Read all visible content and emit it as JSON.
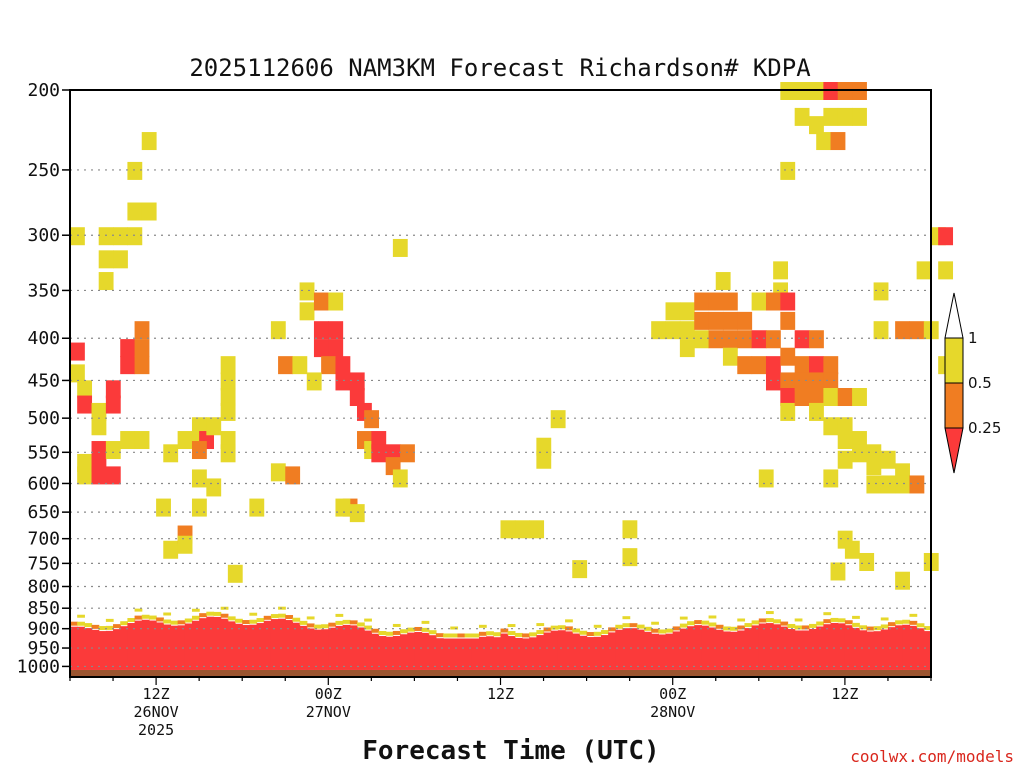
{
  "chart_data": {
    "type": "heatmap",
    "title": "2025112606 NAM3KM Forecast Richardson# KDPA",
    "xlabel": "Forecast Time (UTC)",
    "ylabel": "",
    "credit": "coolwx.com/models",
    "x_range_hours": [
      0,
      60
    ],
    "y_levels_hpa": [
      200,
      250,
      300,
      350,
      400,
      450,
      500,
      550,
      600,
      650,
      700,
      750,
      800,
      850,
      900,
      950,
      1000
    ],
    "ylim_hpa": [
      200,
      1030
    ],
    "x_ticks": [
      {
        "hour": 6,
        "lines": [
          "12Z",
          "26NOV",
          "2025"
        ]
      },
      {
        "hour": 18,
        "lines": [
          "00Z",
          "27NOV"
        ]
      },
      {
        "hour": 30,
        "lines": [
          "12Z"
        ]
      },
      {
        "hour": 42,
        "lines": [
          "00Z",
          "28NOV"
        ]
      },
      {
        "hour": 54,
        "lines": [
          "12Z"
        ]
      }
    ],
    "legend": {
      "thresholds": [
        "1",
        "0.5",
        "0.25"
      ],
      "bins": [
        {
          "label": "0.5 - 1",
          "color": "#e6d82b"
        },
        {
          "label": "0.25 - 0.5",
          "color": "#f07d22"
        },
        {
          "label": "< 0.25",
          "color": "#fb3a3a"
        }
      ]
    },
    "colors": {
      "yellow": "#e6d82b",
      "orange": "#f07d22",
      "red": "#fb3a3a",
      "ground": "#9b5530"
    },
    "ground_hpa": 1010,
    "cells": [
      {
        "x": 0,
        "p": 414,
        "c": "red"
      },
      {
        "x": 0,
        "p": 440,
        "c": "yellow"
      },
      {
        "x": 0.5,
        "p": 460,
        "c": "yellow"
      },
      {
        "x": 0.5,
        "p": 480,
        "c": "red"
      },
      {
        "x": 0.5,
        "p": 565,
        "c": "yellow"
      },
      {
        "x": 0.5,
        "p": 585,
        "c": "yellow"
      },
      {
        "x": 1.5,
        "p": 490,
        "c": "yellow"
      },
      {
        "x": 1.5,
        "p": 510,
        "c": "yellow"
      },
      {
        "x": 1.5,
        "p": 545,
        "c": "red"
      },
      {
        "x": 1.5,
        "p": 565,
        "c": "red"
      },
      {
        "x": 1.5,
        "p": 585,
        "c": "red"
      },
      {
        "x": 2.5,
        "p": 460,
        "c": "red"
      },
      {
        "x": 2.5,
        "p": 480,
        "c": "red"
      },
      {
        "x": 2.5,
        "p": 585,
        "c": "red"
      },
      {
        "x": 2.5,
        "p": 545,
        "c": "yellow"
      },
      {
        "x": 3.5,
        "p": 410,
        "c": "red"
      },
      {
        "x": 3.5,
        "p": 430,
        "c": "red"
      },
      {
        "x": 4.5,
        "p": 390,
        "c": "orange"
      },
      {
        "x": 4.5,
        "p": 410,
        "c": "orange"
      },
      {
        "x": 4.5,
        "p": 430,
        "c": "orange"
      },
      {
        "x": 2,
        "p": 300,
        "c": "yellow"
      },
      {
        "x": 2,
        "p": 320,
        "c": "yellow"
      },
      {
        "x": 2,
        "p": 340,
        "c": "yellow"
      },
      {
        "x": 3,
        "p": 300,
        "c": "yellow"
      },
      {
        "x": 3,
        "p": 320,
        "c": "yellow"
      },
      {
        "x": 4,
        "p": 300,
        "c": "yellow"
      },
      {
        "x": 4,
        "p": 280,
        "c": "yellow"
      },
      {
        "x": 4,
        "p": 250,
        "c": "yellow"
      },
      {
        "x": 5,
        "p": 230,
        "c": "yellow"
      },
      {
        "x": 5,
        "p": 280,
        "c": "yellow"
      },
      {
        "x": 0,
        "p": 300,
        "c": "yellow"
      },
      {
        "x": 3.5,
        "p": 530,
        "c": "yellow"
      },
      {
        "x": 4.5,
        "p": 530,
        "c": "yellow"
      },
      {
        "x": 6.5,
        "p": 550,
        "c": "yellow"
      },
      {
        "x": 7.5,
        "p": 530,
        "c": "yellow"
      },
      {
        "x": 8.5,
        "p": 510,
        "c": "yellow"
      },
      {
        "x": 8.5,
        "p": 530,
        "c": "yellow"
      },
      {
        "x": 9,
        "p": 530,
        "c": "red"
      },
      {
        "x": 8.5,
        "p": 545,
        "c": "orange"
      },
      {
        "x": 8.5,
        "p": 590,
        "c": "yellow"
      },
      {
        "x": 9.5,
        "p": 605,
        "c": "yellow"
      },
      {
        "x": 10.5,
        "p": 430,
        "c": "yellow"
      },
      {
        "x": 10.5,
        "p": 450,
        "c": "yellow"
      },
      {
        "x": 10.5,
        "p": 470,
        "c": "yellow"
      },
      {
        "x": 10.5,
        "p": 490,
        "c": "yellow"
      },
      {
        "x": 10.5,
        "p": 530,
        "c": "yellow"
      },
      {
        "x": 10.5,
        "p": 550,
        "c": "yellow"
      },
      {
        "x": 9.5,
        "p": 510,
        "c": "yellow"
      },
      {
        "x": 6,
        "p": 640,
        "c": "yellow"
      },
      {
        "x": 8.5,
        "p": 640,
        "c": "yellow"
      },
      {
        "x": 12.5,
        "p": 640,
        "c": "yellow"
      },
      {
        "x": 14,
        "p": 390,
        "c": "yellow"
      },
      {
        "x": 14.5,
        "p": 430,
        "c": "orange"
      },
      {
        "x": 15.5,
        "p": 430,
        "c": "yellow"
      },
      {
        "x": 14,
        "p": 580,
        "c": "yellow"
      },
      {
        "x": 15,
        "p": 585,
        "c": "orange"
      },
      {
        "x": 16,
        "p": 350,
        "c": "yellow"
      },
      {
        "x": 16,
        "p": 370,
        "c": "yellow"
      },
      {
        "x": 17,
        "p": 360,
        "c": "orange"
      },
      {
        "x": 18,
        "p": 360,
        "c": "yellow"
      },
      {
        "x": 17,
        "p": 390,
        "c": "red"
      },
      {
        "x": 17,
        "p": 410,
        "c": "red"
      },
      {
        "x": 18,
        "p": 390,
        "c": "red"
      },
      {
        "x": 18,
        "p": 410,
        "c": "red"
      },
      {
        "x": 17.5,
        "p": 430,
        "c": "orange"
      },
      {
        "x": 16.5,
        "p": 450,
        "c": "yellow"
      },
      {
        "x": 18.5,
        "p": 430,
        "c": "red"
      },
      {
        "x": 18.5,
        "p": 450,
        "c": "red"
      },
      {
        "x": 19.5,
        "p": 450,
        "c": "red"
      },
      {
        "x": 19.5,
        "p": 470,
        "c": "red"
      },
      {
        "x": 20,
        "p": 490,
        "c": "red"
      },
      {
        "x": 20.5,
        "p": 500,
        "c": "orange"
      },
      {
        "x": 20,
        "p": 530,
        "c": "orange"
      },
      {
        "x": 20.5,
        "p": 545,
        "c": "yellow"
      },
      {
        "x": 21,
        "p": 530,
        "c": "red"
      },
      {
        "x": 21,
        "p": 550,
        "c": "red"
      },
      {
        "x": 22,
        "p": 550,
        "c": "red"
      },
      {
        "x": 22,
        "p": 570,
        "c": "orange"
      },
      {
        "x": 23,
        "p": 550,
        "c": "orange"
      },
      {
        "x": 22.5,
        "p": 590,
        "c": "yellow"
      },
      {
        "x": 22.5,
        "p": 310,
        "c": "yellow"
      },
      {
        "x": 19,
        "p": 640,
        "c": "orange"
      },
      {
        "x": 18.5,
        "p": 640,
        "c": "yellow"
      },
      {
        "x": 19.5,
        "p": 650,
        "c": "yellow"
      },
      {
        "x": 33.5,
        "p": 500,
        "c": "yellow"
      },
      {
        "x": 32.5,
        "p": 540,
        "c": "yellow"
      },
      {
        "x": 32.5,
        "p": 560,
        "c": "yellow"
      },
      {
        "x": 31,
        "p": 680,
        "c": "yellow"
      },
      {
        "x": 32,
        "p": 680,
        "c": "yellow"
      },
      {
        "x": 30,
        "p": 680,
        "c": "yellow"
      },
      {
        "x": 38.5,
        "p": 680,
        "c": "yellow"
      },
      {
        "x": 38.5,
        "p": 735,
        "c": "yellow"
      },
      {
        "x": 35,
        "p": 760,
        "c": "yellow"
      },
      {
        "x": 6.5,
        "p": 720,
        "c": "yellow"
      },
      {
        "x": 7.5,
        "p": 690,
        "c": "orange"
      },
      {
        "x": 7.5,
        "p": 710,
        "c": "yellow"
      },
      {
        "x": 11,
        "p": 770,
        "c": "yellow"
      },
      {
        "x": 49.5,
        "p": 200,
        "c": "yellow"
      },
      {
        "x": 50.5,
        "p": 200,
        "c": "yellow"
      },
      {
        "x": 51.5,
        "p": 200,
        "c": "yellow"
      },
      {
        "x": 52.5,
        "p": 200,
        "c": "red"
      },
      {
        "x": 53.5,
        "p": 200,
        "c": "orange"
      },
      {
        "x": 54.5,
        "p": 200,
        "c": "orange"
      },
      {
        "x": 50.5,
        "p": 215,
        "c": "yellow"
      },
      {
        "x": 51.5,
        "p": 220,
        "c": "yellow"
      },
      {
        "x": 52.5,
        "p": 215,
        "c": "yellow"
      },
      {
        "x": 53.5,
        "p": 215,
        "c": "yellow"
      },
      {
        "x": 54.5,
        "p": 215,
        "c": "yellow"
      },
      {
        "x": 52,
        "p": 230,
        "c": "yellow"
      },
      {
        "x": 53,
        "p": 230,
        "c": "orange"
      },
      {
        "x": 49.5,
        "p": 250,
        "c": "yellow"
      },
      {
        "x": 45,
        "p": 340,
        "c": "yellow"
      },
      {
        "x": 49,
        "p": 330,
        "c": "yellow"
      },
      {
        "x": 49,
        "p": 350,
        "c": "yellow"
      },
      {
        "x": 40.5,
        "p": 390,
        "c": "yellow"
      },
      {
        "x": 41.5,
        "p": 370,
        "c": "yellow"
      },
      {
        "x": 41.5,
        "p": 390,
        "c": "yellow"
      },
      {
        "x": 42.5,
        "p": 370,
        "c": "yellow"
      },
      {
        "x": 42.5,
        "p": 390,
        "c": "yellow"
      },
      {
        "x": 42.5,
        "p": 410,
        "c": "yellow"
      },
      {
        "x": 43.5,
        "p": 360,
        "c": "orange"
      },
      {
        "x": 43.5,
        "p": 380,
        "c": "orange"
      },
      {
        "x": 43.5,
        "p": 400,
        "c": "yellow"
      },
      {
        "x": 44.5,
        "p": 360,
        "c": "orange"
      },
      {
        "x": 44.5,
        "p": 380,
        "c": "orange"
      },
      {
        "x": 44.5,
        "p": 400,
        "c": "orange"
      },
      {
        "x": 45.5,
        "p": 360,
        "c": "orange"
      },
      {
        "x": 45.5,
        "p": 380,
        "c": "orange"
      },
      {
        "x": 45.5,
        "p": 400,
        "c": "orange"
      },
      {
        "x": 45.5,
        "p": 420,
        "c": "yellow"
      },
      {
        "x": 46.5,
        "p": 380,
        "c": "orange"
      },
      {
        "x": 46.5,
        "p": 400,
        "c": "orange"
      },
      {
        "x": 46.5,
        "p": 430,
        "c": "orange"
      },
      {
        "x": 47.5,
        "p": 360,
        "c": "yellow"
      },
      {
        "x": 47.5,
        "p": 400,
        "c": "red"
      },
      {
        "x": 47.5,
        "p": 430,
        "c": "orange"
      },
      {
        "x": 48.5,
        "p": 360,
        "c": "orange"
      },
      {
        "x": 48.5,
        "p": 400,
        "c": "orange"
      },
      {
        "x": 48.5,
        "p": 430,
        "c": "red"
      },
      {
        "x": 48.5,
        "p": 450,
        "c": "red"
      },
      {
        "x": 49.5,
        "p": 360,
        "c": "red"
      },
      {
        "x": 49.5,
        "p": 380,
        "c": "orange"
      },
      {
        "x": 49.5,
        "p": 420,
        "c": "orange"
      },
      {
        "x": 49.5,
        "p": 450,
        "c": "orange"
      },
      {
        "x": 49.5,
        "p": 470,
        "c": "red"
      },
      {
        "x": 49.5,
        "p": 490,
        "c": "yellow"
      },
      {
        "x": 50.5,
        "p": 400,
        "c": "red"
      },
      {
        "x": 50.5,
        "p": 430,
        "c": "orange"
      },
      {
        "x": 50.5,
        "p": 450,
        "c": "orange"
      },
      {
        "x": 50.5,
        "p": 470,
        "c": "orange"
      },
      {
        "x": 51.5,
        "p": 400,
        "c": "orange"
      },
      {
        "x": 51.5,
        "p": 430,
        "c": "red"
      },
      {
        "x": 51.5,
        "p": 450,
        "c": "orange"
      },
      {
        "x": 51.5,
        "p": 470,
        "c": "orange"
      },
      {
        "x": 51.5,
        "p": 490,
        "c": "yellow"
      },
      {
        "x": 52.5,
        "p": 430,
        "c": "orange"
      },
      {
        "x": 52.5,
        "p": 450,
        "c": "orange"
      },
      {
        "x": 52.5,
        "p": 470,
        "c": "yellow"
      },
      {
        "x": 52.5,
        "p": 510,
        "c": "yellow"
      },
      {
        "x": 53.5,
        "p": 470,
        "c": "orange"
      },
      {
        "x": 53.5,
        "p": 510,
        "c": "yellow"
      },
      {
        "x": 53.5,
        "p": 530,
        "c": "yellow"
      },
      {
        "x": 53.5,
        "p": 560,
        "c": "yellow"
      },
      {
        "x": 54.5,
        "p": 470,
        "c": "yellow"
      },
      {
        "x": 54.5,
        "p": 530,
        "c": "yellow"
      },
      {
        "x": 54.5,
        "p": 550,
        "c": "yellow"
      },
      {
        "x": 55.5,
        "p": 550,
        "c": "yellow"
      },
      {
        "x": 55.5,
        "p": 570,
        "c": "yellow"
      },
      {
        "x": 55.5,
        "p": 600,
        "c": "yellow"
      },
      {
        "x": 56.5,
        "p": 560,
        "c": "yellow"
      },
      {
        "x": 56.5,
        "p": 600,
        "c": "yellow"
      },
      {
        "x": 57.5,
        "p": 580,
        "c": "yellow"
      },
      {
        "x": 57.5,
        "p": 600,
        "c": "yellow"
      },
      {
        "x": 58.5,
        "p": 600,
        "c": "orange"
      },
      {
        "x": 56,
        "p": 350,
        "c": "yellow"
      },
      {
        "x": 56,
        "p": 390,
        "c": "yellow"
      },
      {
        "x": 57.5,
        "p": 390,
        "c": "orange"
      },
      {
        "x": 58.5,
        "p": 390,
        "c": "orange"
      },
      {
        "x": 59.5,
        "p": 390,
        "c": "yellow"
      },
      {
        "x": 60.5,
        "p": 430,
        "c": "yellow"
      },
      {
        "x": 60,
        "p": 300,
        "c": "yellow"
      },
      {
        "x": 60.5,
        "p": 300,
        "c": "red"
      },
      {
        "x": 59,
        "p": 330,
        "c": "yellow"
      },
      {
        "x": 60.5,
        "p": 330,
        "c": "yellow"
      },
      {
        "x": 48,
        "p": 590,
        "c": "yellow"
      },
      {
        "x": 52.5,
        "p": 590,
        "c": "yellow"
      },
      {
        "x": 53.5,
        "p": 700,
        "c": "yellow"
      },
      {
        "x": 54,
        "p": 720,
        "c": "yellow"
      },
      {
        "x": 55,
        "p": 745,
        "c": "yellow"
      },
      {
        "x": 53,
        "p": 765,
        "c": "yellow"
      },
      {
        "x": 59.5,
        "p": 745,
        "c": "yellow"
      },
      {
        "x": 57.5,
        "p": 785,
        "c": "yellow"
      }
    ]
  }
}
